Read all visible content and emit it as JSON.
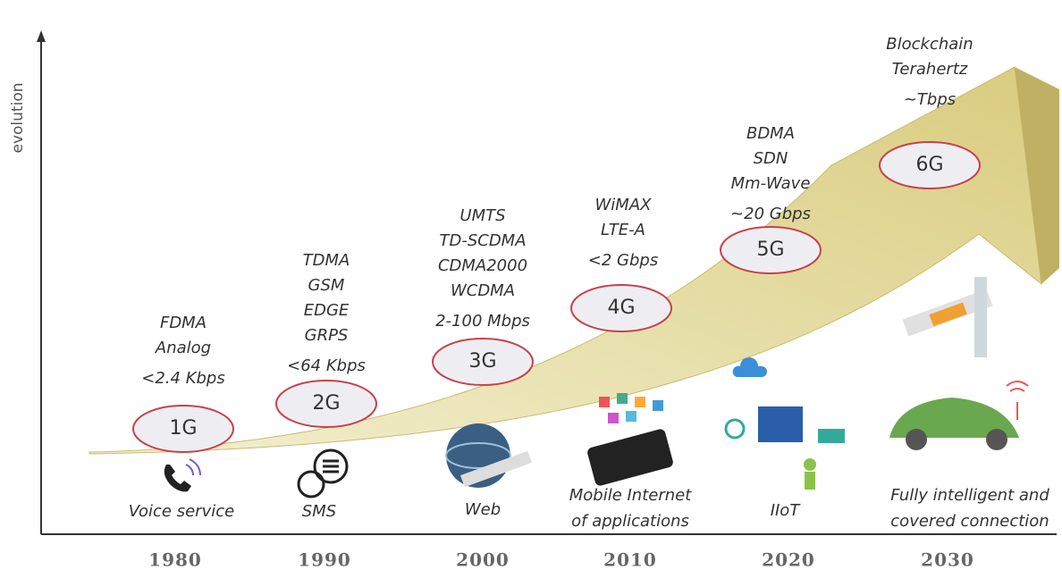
{
  "axis_label": "evolution",
  "generations": [
    {
      "name": "1G",
      "year": "1980",
      "technologies": [
        "FDMA",
        "Analog",
        "<2.4 Kbps"
      ],
      "application": [
        "Voice service"
      ]
    },
    {
      "name": "2G",
      "year": "1990",
      "technologies": [
        "TDMA",
        "GSM",
        "EDGE",
        "GRPS",
        "<64 Kbps"
      ],
      "application": [
        "SMS"
      ]
    },
    {
      "name": "3G",
      "year": "2000",
      "technologies": [
        "UMTS",
        "TD-SCDMA",
        "CDMA2000",
        "WCDMA",
        "2-100 Mbps"
      ],
      "application": [
        "Web"
      ]
    },
    {
      "name": "4G",
      "year": "2010",
      "technologies": [
        "WiMAX",
        "LTE-A",
        "<2 Gbps"
      ],
      "application": [
        "Mobile Internet",
        "of applications"
      ]
    },
    {
      "name": "5G",
      "year": "2020",
      "technologies": [
        "BDMA",
        "SDN",
        "Mm-Wave",
        "~20 Gbps"
      ],
      "application": [
        "IIoT"
      ]
    },
    {
      "name": "6G",
      "year": "2030",
      "technologies": [
        "Blockchain",
        "Terahertz",
        "~Tbps"
      ],
      "application": [
        "Fully intelligent and",
        "covered connection"
      ]
    }
  ]
}
